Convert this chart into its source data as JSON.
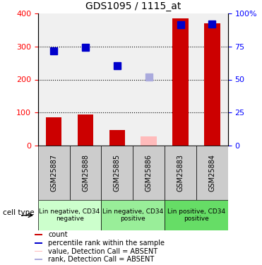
{
  "title": "GDS1095 / 1115_at",
  "samples": [
    "GSM25887",
    "GSM25888",
    "GSM25885",
    "GSM25886",
    "GSM25883",
    "GSM25884"
  ],
  "bar_values": [
    85,
    95,
    48,
    null,
    385,
    370
  ],
  "bar_color": "#cc0000",
  "absent_bar_values": [
    null,
    null,
    null,
    28,
    null,
    null
  ],
  "absent_bar_color": "#ffbbbb",
  "rank_values": [
    287,
    298,
    242,
    null,
    365,
    368
  ],
  "rank_color": "#0000cc",
  "absent_rank_values": [
    null,
    null,
    null,
    208,
    null,
    null
  ],
  "absent_rank_color": "#aaaadd",
  "ylim_left": [
    0,
    400
  ],
  "yticks_left": [
    0,
    100,
    200,
    300,
    400
  ],
  "yticks_right": [
    0,
    25,
    50,
    75,
    100
  ],
  "ytick_labels_right": [
    "0",
    "25",
    "50",
    "75",
    "100%"
  ],
  "dotted_lines": [
    100,
    200,
    300
  ],
  "cell_types": [
    {
      "label": "Lin negative, CD34\nnegative",
      "start": 0,
      "end": 2,
      "color": "#ccffcc"
    },
    {
      "label": "Lin negative, CD34\npositive",
      "start": 2,
      "end": 4,
      "color": "#99ee99"
    },
    {
      "label": "Lin positive, CD34\npositive",
      "start": 4,
      "end": 6,
      "color": "#66dd66"
    }
  ],
  "legend_items": [
    {
      "color": "#cc0000",
      "label": "count"
    },
    {
      "color": "#0000cc",
      "label": "percentile rank within the sample"
    },
    {
      "color": "#ffbbbb",
      "label": "value, Detection Call = ABSENT"
    },
    {
      "color": "#aaaadd",
      "label": "rank, Detection Call = ABSENT"
    }
  ],
  "cell_type_label": "cell type",
  "bg_plot": "#f0f0f0",
  "bg_xtick": "#cccccc",
  "bar_width": 0.5,
  "marker_size": 7
}
